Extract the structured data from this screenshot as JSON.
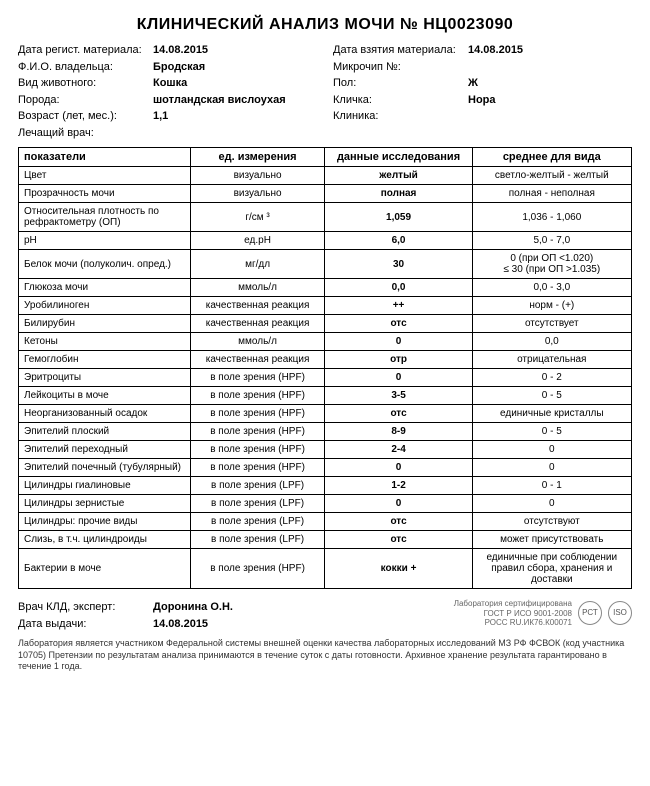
{
  "title": "КЛИНИЧЕСКИЙ АНАЛИЗ МОЧИ  № НЦ0023090",
  "meta": {
    "left": [
      {
        "label": "Дата регист. материала:",
        "value": "14.08.2015"
      },
      {
        "label": "Ф.И.О. владельца:",
        "value": "Бродская"
      },
      {
        "label": "Вид животного:",
        "value": "Кошка"
      },
      {
        "label": "Порода:",
        "value": "шотландская вислоухая"
      },
      {
        "label": "Возраст (лет, мес.):",
        "value": "1,1"
      },
      {
        "label": "Лечащий врач:",
        "value": ""
      }
    ],
    "right": [
      {
        "label": "Дата взятия материала:",
        "value": "14.08.2015"
      },
      {
        "label": "",
        "value": ""
      },
      {
        "label": "Микрочип №:",
        "value": ""
      },
      {
        "label": "Пол:",
        "value": "Ж"
      },
      {
        "label": "Кличка:",
        "value": "Нора"
      },
      {
        "label": "Клиника:",
        "value": ""
      }
    ]
  },
  "table": {
    "headers": [
      "показатели",
      "ед. измерения",
      "данные исследования",
      "среднее для вида"
    ],
    "rows": [
      [
        "Цвет",
        "визуально",
        "желтый",
        "светло-желтый - желтый"
      ],
      [
        "Прозрачность мочи",
        "визуально",
        "полная",
        "полная - неполная"
      ],
      [
        "Относительная плотность по рефрактометру (ОП)",
        "г/см ³",
        "1,059",
        "1,036 - 1,060"
      ],
      [
        "pH",
        "ед.pH",
        "6,0",
        "5,0 - 7,0"
      ],
      [
        "Белок мочи (полуколич. опред.)",
        "мг/дл",
        "30",
        "0 (при ОП <1.020)\n≤ 30 (при ОП >1.035)"
      ],
      [
        "Глюкоза мочи",
        "ммоль/л",
        "0,0",
        "0,0 - 3,0"
      ],
      [
        "Уробилиноген",
        "качественная реакция",
        "++",
        "норм - (+)"
      ],
      [
        "Билирубин",
        "качественная реакция",
        "отс",
        "отсутствует"
      ],
      [
        "Кетоны",
        "ммоль/л",
        "0",
        "0,0"
      ],
      [
        "Гемоглобин",
        "качественная реакция",
        "отр",
        "отрицательная"
      ],
      [
        "Эритроциты",
        "в поле зрения (HPF)",
        "0",
        "0 - 2"
      ],
      [
        "Лейкоциты в моче",
        "в поле зрения (HPF)",
        "3-5",
        "0 - 5"
      ],
      [
        "Неорганизованный осадок",
        "в поле зрения (HPF)",
        "отс",
        "единичные кристаллы"
      ],
      [
        "Эпителий плоский",
        "в поле зрения (HPF)",
        "8-9",
        "0 - 5"
      ],
      [
        "Эпителий переходный",
        "в поле зрения (HPF)",
        "2-4",
        "0"
      ],
      [
        "Эпителий почечный (тубулярный)",
        "в поле зрения (HPF)",
        "0",
        "0"
      ],
      [
        "Цилиндры гиалиновые",
        "в поле зрения (LPF)",
        "1-2",
        "0 - 1"
      ],
      [
        "Цилиндры зернистые",
        "в поле зрения (LPF)",
        "0",
        "0"
      ],
      [
        "Цилиндры: прочие виды",
        "в поле зрения (LPF)",
        "отс",
        "отсутствуют"
      ],
      [
        "Слизь, в т.ч. цилиндроиды",
        "в поле зрения (LPF)",
        "отс",
        "может присутствовать"
      ],
      [
        "Бактерии в моче",
        "в поле зрения (HPF)",
        "кокки +",
        "единичные при соблюдении правил сбора, хранения и доставки"
      ]
    ]
  },
  "footer": {
    "doctor_label": "Врач КЛД, эксперт:",
    "doctor_value": "Доронина О.Н.",
    "date_label": "Дата выдачи:",
    "date_value": "14.08.2015",
    "cert_line1": "Лаборатория сертифицирована",
    "cert_line2": "ГОСТ Р ИСО 9001-2008",
    "cert_line3": "РОСС RU.ИК76.К00071",
    "icon1": "РСТ",
    "icon2": "ISO",
    "footnote": "Лаборатория является участником Федеральной системы внешней оценки качества лабораторных исследований МЗ РФ ФСВОК (код участника 10705) Претензии по результатам анализа принимаются в течение суток с даты готовности. Архивное хранение результата гарантировано в течение 1 года."
  }
}
